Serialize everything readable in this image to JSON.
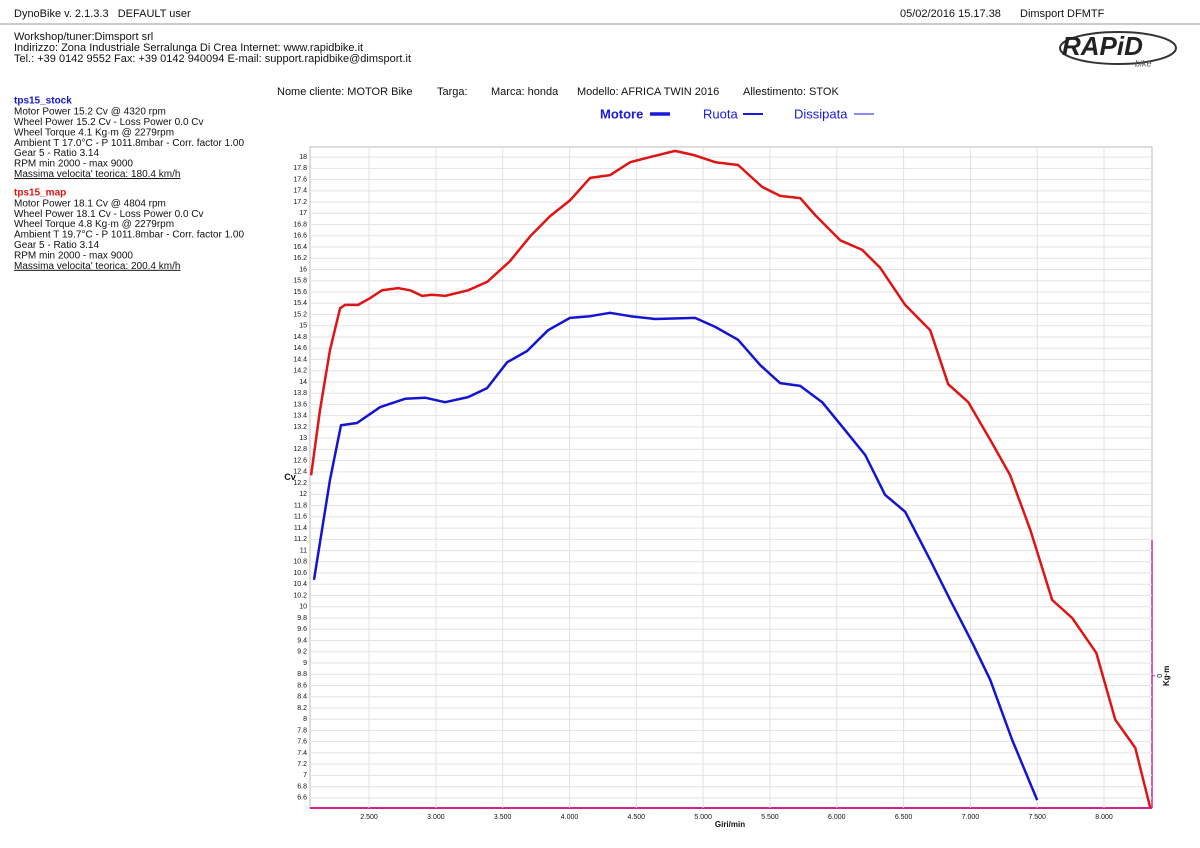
{
  "header": {
    "app": "DynoBike v. 2.1.3.3   DEFAULT user",
    "datetime": "05/02/2016 15.17.38",
    "device": "Dimsport DFMTF",
    "lines": [
      "Workshop/tuner:Dimsport srl",
      "Indirizzo: Zona Industriale Serralunga Di Crea Internet: www.rapidbike.it",
      "Tel.: +39 0142 9552 Fax: +39 0142 940094 E-mail: support.rapidbike@dimsport.it"
    ],
    "logo": "RAPiD",
    "logo_sub": "bike"
  },
  "customer": [
    "Nome cliente: MOTOR Bike",
    "Targa:",
    "Marca: honda",
    "Modello: AFRICA TWIN 2016",
    "Allestimento: STOK"
  ],
  "chart_data": {
    "type": "line",
    "ylabel": "Cv",
    "xlabel": "Giri/min",
    "y2label": "Kg·m",
    "legend_items": [
      "Motore",
      "Ruota",
      "Dissipata"
    ],
    "grid": true,
    "xlim": [
      2058,
      8359
    ],
    "ylim": [
      6.42,
      18.18
    ],
    "y2lim": [
      -1,
      4
    ],
    "y2ticks": [
      0
    ],
    "xticks": [
      {
        "value": 2500,
        "label": "2.500"
      },
      {
        "value": 3000,
        "label": "3.000"
      },
      {
        "value": 3500,
        "label": "3.500"
      },
      {
        "value": 4000,
        "label": "4.000"
      },
      {
        "value": 4500,
        "label": "4.500"
      },
      {
        "value": 5000,
        "label": "5.000"
      },
      {
        "value": 5500,
        "label": "5.500"
      },
      {
        "value": 6000,
        "label": "6.000"
      },
      {
        "value": 6500,
        "label": "6.500"
      },
      {
        "value": 7000,
        "label": "7.000"
      },
      {
        "value": 7500,
        "label": "7.500"
      },
      {
        "value": 8000,
        "label": "8.000"
      }
    ],
    "yticks": [
      6.6,
      6.8,
      7,
      7.2,
      7.4,
      7.6,
      7.8,
      8,
      8.2,
      8.4,
      8.6,
      8.8,
      9,
      9.2,
      9.4,
      9.6,
      9.8,
      10,
      10.2,
      10.4,
      10.6,
      10.8,
      11,
      11.2,
      11.4,
      11.6,
      11.8,
      12,
      12.2,
      12.4,
      12.6,
      12.8,
      13,
      13.2,
      13.4,
      13.6,
      13.8,
      14,
      14.2,
      14.4,
      14.6,
      14.8,
      15,
      15.2,
      15.4,
      15.6,
      15.8,
      16,
      16.2,
      16.4,
      16.6,
      16.8,
      17,
      17.2,
      17.4,
      17.6,
      17.8,
      18
    ],
    "series": [
      {
        "name": "tps15_stock",
        "color": "#1414d2",
        "details": [
          "Motor Power 15.2 Cv  @ 4320 rpm",
          "Wheel Power 15.2 Cv  - Loss Power 0.0 Cv",
          "Wheel Torque 4.1 Kg·m  @ 2279rpm",
          "Ambient T 17.0°C - P 1011.8mbar - Corr. factor 1.00",
          "Gear 5 - Ratio 3.14",
          "RPM min 2000 - max 9000",
          "Massima velocita' teorica: 180.4 km/h"
        ],
        "x": [
          2088,
          2148,
          2208,
          2290,
          2410,
          2582,
          2769,
          2919,
          3069,
          3241,
          3383,
          3533,
          3683,
          3840,
          4004,
          4154,
          4304,
          4454,
          4641,
          4940,
          5090,
          5262,
          5427,
          5576,
          5726,
          5891,
          6063,
          6213,
          6362,
          6512,
          6699,
          6849,
          7014,
          7148,
          7313,
          7500
        ],
        "values": [
          10.48,
          11.37,
          12.26,
          13.23,
          13.27,
          13.55,
          13.7,
          13.72,
          13.64,
          13.73,
          13.89,
          14.35,
          14.55,
          14.92,
          15.14,
          15.17,
          15.23,
          15.17,
          15.12,
          15.14,
          14.98,
          14.75,
          14.3,
          13.98,
          13.93,
          13.64,
          13.14,
          12.7,
          11.99,
          11.69,
          10.83,
          10.12,
          9.36,
          8.7,
          7.63,
          6.56
        ]
      },
      {
        "name": "tps15_map",
        "color": "#e01414",
        "details": [
          "Motor Power 18.1 Cv  @ 4804 rpm",
          "Wheel Power 18.1 Cv  - Loss Power 0.0 Cv",
          "Wheel Torque 4.8 Kg·m  @ 2279rpm",
          "Ambient T 19.7°C - P 1011.8mbar - Corr. factor 1.00",
          "Gear 5 - Ratio 3.14",
          "RPM min 2000 - max 9000",
          "Massima velocita' teorica: 200.4 km/h"
        ],
        "x": [
          2066,
          2133,
          2208,
          2283,
          2320,
          2418,
          2507,
          2597,
          2717,
          2807,
          2897,
          2972,
          3069,
          3241,
          3383,
          3555,
          3705,
          3855,
          4004,
          4154,
          4304,
          4454,
          4603,
          4790,
          4940,
          5090,
          5262,
          5442,
          5576,
          5726,
          5838,
          6026,
          6190,
          6325,
          6512,
          6699,
          6834,
          6984,
          7148,
          7298,
          7448,
          7612,
          7762,
          7942,
          8084,
          8234,
          8346
        ],
        "values": [
          12.34,
          13.5,
          14.57,
          15.31,
          15.37,
          15.37,
          15.49,
          15.63,
          15.67,
          15.63,
          15.53,
          15.55,
          15.53,
          15.63,
          15.78,
          16.15,
          16.59,
          16.95,
          17.23,
          17.63,
          17.68,
          17.91,
          18.0,
          18.11,
          18.03,
          17.91,
          17.86,
          17.47,
          17.31,
          17.27,
          16.97,
          16.52,
          16.35,
          16.03,
          15.37,
          14.92,
          13.96,
          13.64,
          12.97,
          12.34,
          11.37,
          10.12,
          9.8,
          9.18,
          7.99,
          7.49,
          6.42
        ]
      }
    ]
  }
}
